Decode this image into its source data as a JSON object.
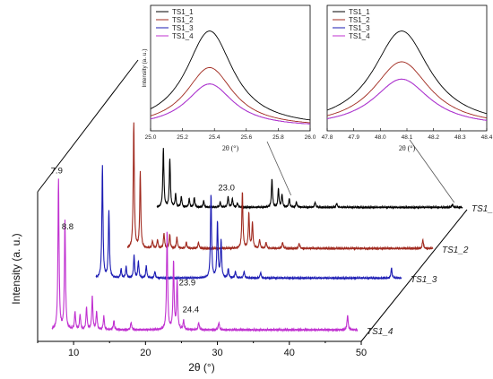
{
  "chart_data": [
    {
      "type": "line",
      "name": "main",
      "xlabel": "2θ (°)",
      "ylabel": "Intensity (a. u.)",
      "xlim": [
        5,
        50
      ],
      "xticks": [
        10,
        20,
        30,
        40,
        50
      ],
      "annotations": [
        {
          "text": "7.9",
          "x": 7.9,
          "series": 3
        },
        {
          "text": "8.8",
          "x": 8.8,
          "series": 3
        },
        {
          "text": "23.0",
          "x": 23.0,
          "series": 2
        },
        {
          "text": "23.9",
          "x": 23.9,
          "series": 3
        },
        {
          "text": "24.4",
          "x": 24.4,
          "series": 3
        }
      ],
      "series": [
        {
          "name": "TS1_1",
          "color": "#000000",
          "peaks": [
            [
              7.9,
              0.55
            ],
            [
              8.8,
              0.45
            ],
            [
              9.6,
              0.12
            ],
            [
              10.4,
              0.1
            ],
            [
              11.5,
              0.08
            ],
            [
              12.2,
              0.09
            ],
            [
              13.5,
              0.06
            ],
            [
              15.8,
              0.05
            ],
            [
              16.9,
              0.1
            ],
            [
              17.5,
              0.08
            ],
            [
              18.2,
              0.04
            ],
            [
              23.0,
              0.26
            ],
            [
              23.9,
              0.17
            ],
            [
              24.4,
              0.12
            ],
            [
              25.4,
              0.08
            ],
            [
              26.4,
              0.05
            ],
            [
              29.0,
              0.05
            ],
            [
              32.0,
              0.04
            ],
            [
              48.1,
              0.03
            ]
          ]
        },
        {
          "name": "TS1_2",
          "color": "#a0291e",
          "peaks": [
            [
              7.9,
              1.0
            ],
            [
              8.8,
              0.6
            ],
            [
              10.5,
              0.06
            ],
            [
              11.2,
              0.07
            ],
            [
              12.1,
              0.12
            ],
            [
              12.9,
              0.11
            ],
            [
              13.9,
              0.09
            ],
            [
              15.2,
              0.05
            ],
            [
              16.9,
              0.05
            ],
            [
              23.0,
              0.45
            ],
            [
              23.9,
              0.28
            ],
            [
              24.4,
              0.2
            ],
            [
              25.4,
              0.07
            ],
            [
              26.3,
              0.05
            ],
            [
              28.6,
              0.05
            ],
            [
              30.9,
              0.04
            ],
            [
              48.1,
              0.07
            ]
          ]
        },
        {
          "name": "TS1_3",
          "color": "#1b1bb3",
          "peaks": [
            [
              7.9,
              1.0
            ],
            [
              8.8,
              0.6
            ],
            [
              10.5,
              0.08
            ],
            [
              11.2,
              0.1
            ],
            [
              12.3,
              0.2
            ],
            [
              12.9,
              0.15
            ],
            [
              14.0,
              0.11
            ],
            [
              15.2,
              0.06
            ],
            [
              23.0,
              0.75
            ],
            [
              23.9,
              0.5
            ],
            [
              24.4,
              0.33
            ],
            [
              25.4,
              0.08
            ],
            [
              26.4,
              0.06
            ],
            [
              27.6,
              0.06
            ],
            [
              29.9,
              0.05
            ],
            [
              48.1,
              0.09
            ]
          ]
        },
        {
          "name": "TS1_4",
          "color": "#c030d0",
          "peaks": [
            [
              7.9,
              1.0
            ],
            [
              8.8,
              0.72
            ],
            [
              10.2,
              0.12
            ],
            [
              10.9,
              0.1
            ],
            [
              11.8,
              0.15
            ],
            [
              12.6,
              0.22
            ],
            [
              13.2,
              0.12
            ],
            [
              14.2,
              0.09
            ],
            [
              15.6,
              0.06
            ],
            [
              18.0,
              0.05
            ],
            [
              23.0,
              0.65
            ],
            [
              23.9,
              0.45
            ],
            [
              24.4,
              0.32
            ],
            [
              25.3,
              0.06
            ],
            [
              27.4,
              0.05
            ],
            [
              30.2,
              0.05
            ],
            [
              48.1,
              0.1
            ]
          ]
        }
      ]
    },
    {
      "type": "line",
      "name": "inset-left",
      "xlabel": "2θ (°)",
      "ylabel": "Intensity (a. u.)",
      "xlim": [
        25.0,
        26.0
      ],
      "xticks": [
        "25.0",
        "25.2",
        "25.4",
        "25.6",
        "25.8",
        "26.0"
      ],
      "center": 25.37,
      "width": 0.18,
      "legend": "top-left",
      "series": [
        {
          "name": "TS1_1",
          "color": "#000000",
          "peak": 1.0
        },
        {
          "name": "TS1_2",
          "color": "#a0291e",
          "peak": 0.62
        },
        {
          "name": "TS1_3",
          "color": "#1b1bb3",
          "peak": 0.45
        },
        {
          "name": "TS1_4",
          "color": "#c030d0",
          "peak": 0.45
        }
      ]
    },
    {
      "type": "line",
      "name": "inset-right",
      "xlabel": "2θ (°)",
      "ylabel": "",
      "xlim": [
        47.8,
        48.4
      ],
      "xticks": [
        "47.8",
        "47.9",
        "48.0",
        "48.1",
        "48.2",
        "48.3",
        "48.4"
      ],
      "center": 48.08,
      "width": 0.13,
      "legend": "top-left",
      "series": [
        {
          "name": "TS1_1",
          "color": "#000000",
          "peak": 1.0
        },
        {
          "name": "TS1_2",
          "color": "#a0291e",
          "peak": 0.68
        },
        {
          "name": "TS1_3",
          "color": "#1b1bb3",
          "peak": 0.5
        },
        {
          "name": "TS1_4",
          "color": "#c030d0",
          "peak": 0.5
        }
      ]
    }
  ]
}
